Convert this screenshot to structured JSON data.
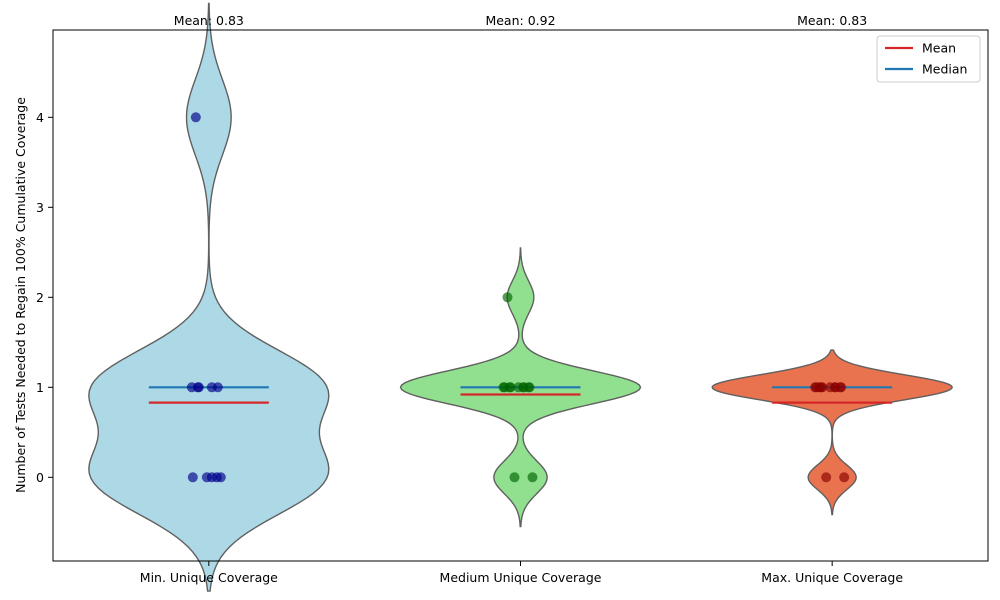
{
  "chart_data": {
    "type": "violin",
    "ylabel": "Number of Tests Needed to Regain 100% Cumulative Coverage",
    "xlabel": "",
    "ylim": [
      -0.93,
      4.97
    ],
    "yticks": [
      0,
      1,
      2,
      3,
      4
    ],
    "grid": false,
    "legend_position": "top-right",
    "legend": [
      {
        "label": "Mean",
        "color": "#d62728"
      },
      {
        "label": "Median",
        "color": "#1f77b4"
      }
    ],
    "categories": [
      {
        "name": "Min. Unique Coverage",
        "mean_label": "Mean: 0.83",
        "mean": 0.83,
        "median": 1,
        "violin_color": "#add8e6",
        "point_color": "#00008b",
        "points": [
          4,
          1,
          1,
          1,
          1,
          1,
          0,
          0,
          0,
          0,
          0
        ]
      },
      {
        "name": "Medium Unique Coverage",
        "mean_label": "Mean: 0.92",
        "mean": 0.92,
        "median": 1,
        "violin_color": "#90e090",
        "point_color": "#006400",
        "points": [
          2,
          1,
          1,
          1,
          1,
          1,
          1,
          1,
          1,
          1,
          0,
          0
        ]
      },
      {
        "name": "Max. Unique Coverage",
        "mean_label": "Mean: 0.83",
        "mean": 0.83,
        "median": 1,
        "violin_color": "#e9734f",
        "point_color": "#8b0000",
        "points": [
          1,
          1,
          1,
          1,
          1,
          1,
          1,
          1,
          1,
          1,
          0,
          0
        ]
      }
    ]
  }
}
